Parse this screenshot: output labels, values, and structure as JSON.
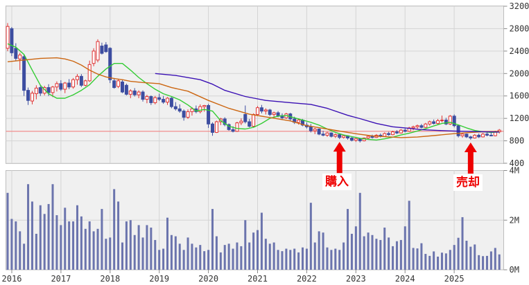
{
  "chart_data": {
    "type": "candlestick_with_volume",
    "period": "monthly",
    "start_month": "2015-12",
    "months_count": 121,
    "x_axis": {
      "year_labels": [
        "2016",
        "2017",
        "2018",
        "2019",
        "2020",
        "2021",
        "2022",
        "2023",
        "2024",
        "2025"
      ]
    },
    "price_axis": {
      "min": 400,
      "max": 3200,
      "ticks": [
        3200,
        2800,
        2400,
        2000,
        1600,
        1200,
        800,
        400
      ]
    },
    "volume_axis": {
      "min_m": 0,
      "max_m": 4,
      "ticks": [
        {
          "value_m": 4,
          "label": "4M"
        },
        {
          "value_m": 2,
          "label": "2M"
        },
        {
          "value_m": 0,
          "label": "0M"
        }
      ]
    },
    "reference_line": {
      "price": 970,
      "color": "#f28484"
    },
    "candles_ohlc": [
      [
        2450,
        2900,
        2400,
        2840
      ],
      [
        2800,
        2830,
        2310,
        2370
      ],
      [
        2450,
        2540,
        2230,
        2270
      ],
      [
        2260,
        2370,
        2060,
        2330
      ],
      [
        2300,
        2330,
        1600,
        1700
      ],
      [
        1700,
        1750,
        1440,
        1520
      ],
      [
        1510,
        1690,
        1450,
        1650
      ],
      [
        1640,
        1790,
        1540,
        1740
      ],
      [
        1750,
        1800,
        1600,
        1650
      ],
      [
        1650,
        1780,
        1610,
        1750
      ],
      [
        1750,
        1810,
        1600,
        1660
      ],
      [
        1660,
        1780,
        1580,
        1760
      ],
      [
        1760,
        1860,
        1680,
        1820
      ],
      [
        1820,
        1880,
        1690,
        1720
      ],
      [
        1720,
        1850,
        1650,
        1830
      ],
      [
        1830,
        1900,
        1720,
        1760
      ],
      [
        1760,
        1920,
        1730,
        1890
      ],
      [
        1890,
        1990,
        1800,
        1950
      ],
      [
        1950,
        1990,
        1760,
        1790
      ],
      [
        1790,
        1890,
        1770,
        1870
      ],
      [
        1870,
        2230,
        1850,
        2160
      ],
      [
        2180,
        2450,
        2130,
        2400
      ],
      [
        2240,
        2610,
        2200,
        2570
      ],
      [
        2490,
        2550,
        2340,
        2360
      ],
      [
        2510,
        2560,
        2370,
        2390
      ],
      [
        2450,
        2470,
        1830,
        1890
      ],
      [
        1870,
        1920,
        1730,
        1750
      ],
      [
        1770,
        1900,
        1740,
        1870
      ],
      [
        1850,
        1880,
        1650,
        1670
      ],
      [
        1790,
        1820,
        1610,
        1630
      ],
      [
        1630,
        1720,
        1560,
        1690
      ],
      [
        1690,
        1740,
        1590,
        1620
      ],
      [
        1620,
        1700,
        1560,
        1670
      ],
      [
        1670,
        1700,
        1500,
        1540
      ],
      [
        1540,
        1620,
        1470,
        1590
      ],
      [
        1590,
        1610,
        1440,
        1480
      ],
      [
        1480,
        1600,
        1450,
        1570
      ],
      [
        1570,
        1640,
        1510,
        1540
      ],
      [
        1540,
        1600,
        1460,
        1490
      ],
      [
        1490,
        1580,
        1440,
        1560
      ],
      [
        1560,
        1580,
        1380,
        1410
      ],
      [
        1410,
        1490,
        1340,
        1370
      ],
      [
        1370,
        1450,
        1300,
        1330
      ],
      [
        1330,
        1360,
        1160,
        1220
      ],
      [
        1220,
        1360,
        1190,
        1320
      ],
      [
        1320,
        1400,
        1250,
        1370
      ],
      [
        1370,
        1430,
        1290,
        1320
      ],
      [
        1320,
        1450,
        1290,
        1410
      ],
      [
        1410,
        1440,
        1320,
        1430
      ],
      [
        1430,
        1460,
        1030,
        1100
      ],
      [
        1100,
        1130,
        890,
        950
      ],
      [
        950,
        1160,
        940,
        1140
      ],
      [
        1140,
        1210,
        1080,
        1190
      ],
      [
        1190,
        1220,
        1060,
        1090
      ],
      [
        1090,
        1110,
        980,
        1000
      ],
      [
        1000,
        1060,
        950,
        970
      ],
      [
        970,
        1140,
        960,
        1120
      ],
      [
        1120,
        1200,
        1080,
        1150
      ],
      [
        1270,
        1430,
        1110,
        1140
      ],
      [
        1140,
        1190,
        1040,
        1060
      ],
      [
        1060,
        1290,
        1040,
        1270
      ],
      [
        1270,
        1420,
        1250,
        1390
      ],
      [
        1390,
        1440,
        1290,
        1330
      ],
      [
        1330,
        1380,
        1270,
        1350
      ],
      [
        1350,
        1370,
        1240,
        1270
      ],
      [
        1270,
        1320,
        1210,
        1300
      ],
      [
        1300,
        1330,
        1220,
        1250
      ],
      [
        1250,
        1290,
        1180,
        1210
      ],
      [
        1210,
        1300,
        1190,
        1280
      ],
      [
        1280,
        1300,
        1160,
        1190
      ],
      [
        1190,
        1230,
        1100,
        1130
      ],
      [
        1130,
        1200,
        1090,
        1170
      ],
      [
        1170,
        1190,
        1060,
        1080
      ],
      [
        1080,
        1130,
        1020,
        1050
      ],
      [
        1050,
        1100,
        950,
        980
      ],
      [
        980,
        1030,
        920,
        1010
      ],
      [
        1010,
        1020,
        900,
        920
      ],
      [
        920,
        980,
        880,
        900
      ],
      [
        900,
        960,
        870,
        940
      ],
      [
        940,
        950,
        860,
        880
      ],
      [
        880,
        930,
        850,
        910
      ],
      [
        910,
        920,
        830,
        860
      ],
      [
        860,
        910,
        840,
        890
      ],
      [
        890,
        900,
        820,
        850
      ],
      [
        850,
        880,
        790,
        810
      ],
      [
        810,
        860,
        780,
        840
      ],
      [
        840,
        850,
        770,
        800
      ],
      [
        800,
        860,
        790,
        850
      ],
      [
        850,
        900,
        830,
        880
      ],
      [
        880,
        910,
        840,
        860
      ],
      [
        860,
        920,
        850,
        900
      ],
      [
        900,
        930,
        860,
        880
      ],
      [
        880,
        950,
        870,
        930
      ],
      [
        930,
        960,
        890,
        910
      ],
      [
        910,
        980,
        900,
        960
      ],
      [
        960,
        990,
        920,
        940
      ],
      [
        940,
        1010,
        930,
        990
      ],
      [
        990,
        1020,
        950,
        970
      ],
      [
        970,
        1050,
        960,
        1030
      ],
      [
        1030,
        1070,
        990,
        1050
      ],
      [
        1050,
        1090,
        1010,
        1070
      ],
      [
        1070,
        1100,
        1020,
        1040
      ],
      [
        1040,
        1120,
        1030,
        1100
      ],
      [
        1100,
        1160,
        1070,
        1140
      ],
      [
        1140,
        1180,
        1090,
        1110
      ],
      [
        1110,
        1190,
        1080,
        1160
      ],
      [
        1160,
        1250,
        1130,
        1170
      ],
      [
        1170,
        1210,
        1080,
        1100
      ],
      [
        1100,
        1260,
        1080,
        1240
      ],
      [
        1240,
        1270,
        1040,
        1070
      ],
      [
        1070,
        1090,
        860,
        890
      ],
      [
        890,
        940,
        855,
        920
      ],
      [
        920,
        930,
        850,
        870
      ],
      [
        870,
        890,
        820,
        850
      ],
      [
        850,
        920,
        840,
        900
      ],
      [
        900,
        930,
        850,
        870
      ],
      [
        870,
        940,
        860,
        920
      ],
      [
        920,
        950,
        880,
        900
      ],
      [
        900,
        960,
        880,
        890
      ],
      [
        890,
        980,
        880,
        960
      ],
      [
        960,
        1010,
        930,
        990
      ]
    ],
    "volumes_millions": [
      3.1,
      2.05,
      1.95,
      1.55,
      1.05,
      3.45,
      2.75,
      1.45,
      2.6,
      2.25,
      2.65,
      3.45,
      2.2,
      1.8,
      2.5,
      1.95,
      1.95,
      2.6,
      2.15,
      1.65,
      1.95,
      1.55,
      1.65,
      2.45,
      1.25,
      1.3,
      3.25,
      2.75,
      1.1,
      1.95,
      2.0,
      1.4,
      1.8,
      1.3,
      1.8,
      1.7,
      1.2,
      0.8,
      0.85,
      2.1,
      1.4,
      1.35,
      1.05,
      0.8,
      1.3,
      1.05,
      0.9,
      1.0,
      0.75,
      0.8,
      2.45,
      1.35,
      0.7,
      1.0,
      1.05,
      0.85,
      1.1,
      0.95,
      2.0,
      1.1,
      1.5,
      1.6,
      2.3,
      1.25,
      1.05,
      1.1,
      0.8,
      0.75,
      0.85,
      0.8,
      0.85,
      0.7,
      0.9,
      0.85,
      2.7,
      1.1,
      1.55,
      1.5,
      0.9,
      0.8,
      0.85,
      0.8,
      1.1,
      2.45,
      1.45,
      1.75,
      3.1,
      1.35,
      1.5,
      1.4,
      1.25,
      1.2,
      1.7,
      1.3,
      0.95,
      1.15,
      1.2,
      1.75,
      2.78,
      0.88,
      0.86,
      1.07,
      0.64,
      0.56,
      0.74,
      0.53,
      0.69,
      0.66,
      0.8,
      1.0,
      1.29,
      2.12,
      1.17,
      0.93,
      1.02,
      0.59,
      0.55,
      0.56,
      0.74,
      0.88,
      0.62
    ],
    "moving_averages": [
      {
        "name": "short-term-ma",
        "color": "#33cc33",
        "points": [
          [
            0,
            2530
          ],
          [
            2,
            2470
          ],
          [
            4,
            2340
          ],
          [
            6,
            2060
          ],
          [
            8,
            1790
          ],
          [
            10,
            1640
          ],
          [
            12,
            1560
          ],
          [
            14,
            1560
          ],
          [
            16,
            1620
          ],
          [
            18,
            1700
          ],
          [
            20,
            1800
          ],
          [
            22,
            1950
          ],
          [
            24,
            2080
          ],
          [
            26,
            2180
          ],
          [
            28,
            2180
          ],
          [
            30,
            2060
          ],
          [
            32,
            1930
          ],
          [
            34,
            1820
          ],
          [
            36,
            1720
          ],
          [
            38,
            1640
          ],
          [
            40,
            1590
          ],
          [
            42,
            1530
          ],
          [
            44,
            1440
          ],
          [
            46,
            1330
          ],
          [
            48,
            1360
          ],
          [
            50,
            1330
          ],
          [
            52,
            1160
          ],
          [
            54,
            1060
          ],
          [
            56,
            1020
          ],
          [
            58,
            1010
          ],
          [
            60,
            1040
          ],
          [
            62,
            1110
          ],
          [
            64,
            1200
          ],
          [
            66,
            1240
          ],
          [
            68,
            1250
          ],
          [
            70,
            1210
          ],
          [
            72,
            1170
          ],
          [
            74,
            1130
          ],
          [
            76,
            1080
          ],
          [
            78,
            1010
          ],
          [
            80,
            950
          ],
          [
            82,
            905
          ],
          [
            84,
            875
          ],
          [
            86,
            845
          ],
          [
            88,
            825
          ],
          [
            90,
            815
          ],
          [
            92,
            835
          ],
          [
            94,
            865
          ],
          [
            96,
            905
          ],
          [
            98,
            935
          ],
          [
            100,
            975
          ],
          [
            102,
            1015
          ],
          [
            104,
            1065
          ],
          [
            106,
            1110
          ],
          [
            108,
            1130
          ],
          [
            110,
            1085
          ],
          [
            112,
            1030
          ],
          [
            114,
            985
          ],
          [
            116,
            960
          ],
          [
            118,
            950
          ],
          [
            120,
            958
          ]
        ]
      },
      {
        "name": "mid-term-ma",
        "color": "#cc6611",
        "points": [
          [
            0,
            2210
          ],
          [
            4,
            2240
          ],
          [
            8,
            2270
          ],
          [
            12,
            2280
          ],
          [
            14,
            2260
          ],
          [
            16,
            2220
          ],
          [
            18,
            2150
          ],
          [
            20,
            2060
          ],
          [
            22,
            1990
          ],
          [
            24,
            1940
          ],
          [
            26,
            1910
          ],
          [
            28,
            1890
          ],
          [
            30,
            1860
          ],
          [
            33,
            1840
          ],
          [
            37,
            1820
          ],
          [
            40,
            1750
          ],
          [
            44,
            1685
          ],
          [
            49,
            1520
          ],
          [
            54,
            1380
          ],
          [
            59,
            1275
          ],
          [
            64,
            1215
          ],
          [
            69,
            1155
          ],
          [
            73,
            1070
          ],
          [
            78,
            1010
          ],
          [
            83,
            950
          ],
          [
            85,
            927
          ],
          [
            89,
            887
          ],
          [
            94,
            866
          ],
          [
            96,
            858
          ],
          [
            100,
            868
          ],
          [
            104,
            893
          ],
          [
            108,
            922
          ],
          [
            112,
            945
          ],
          [
            116,
            960
          ],
          [
            120,
            968
          ]
        ]
      },
      {
        "name": "long-term-ma",
        "color": "#3a10b4",
        "points": [
          [
            36,
            2000
          ],
          [
            41,
            1965
          ],
          [
            47,
            1890
          ],
          [
            50,
            1810
          ],
          [
            53,
            1700
          ],
          [
            58,
            1590
          ],
          [
            63,
            1520
          ],
          [
            69,
            1480
          ],
          [
            74,
            1450
          ],
          [
            78,
            1380
          ],
          [
            83,
            1255
          ],
          [
            86,
            1195
          ],
          [
            90,
            1110
          ],
          [
            94,
            1050
          ],
          [
            97,
            1030
          ],
          [
            101,
            1000
          ],
          [
            105,
            985
          ],
          [
            109,
            975
          ],
          [
            113,
            966
          ],
          [
            117,
            960
          ],
          [
            120,
            957
          ]
        ]
      }
    ],
    "annotations": [
      {
        "label": "購入",
        "month_index": 81,
        "color": "#ee0000"
      },
      {
        "label": "売却",
        "month_index": 113,
        "color": "#ee0000"
      }
    ],
    "colors": {
      "up_candle": "#e03232",
      "down_candle": "#3c4da0",
      "volume_bar": "#6b74ad",
      "pane_background": "#f0f0f0",
      "pane_border": "#bdbdbd",
      "grid_line": "#d4d4d4",
      "axis_text": "#333333",
      "tick_mark": "#888888",
      "annotation_red": "#ee0000"
    }
  }
}
